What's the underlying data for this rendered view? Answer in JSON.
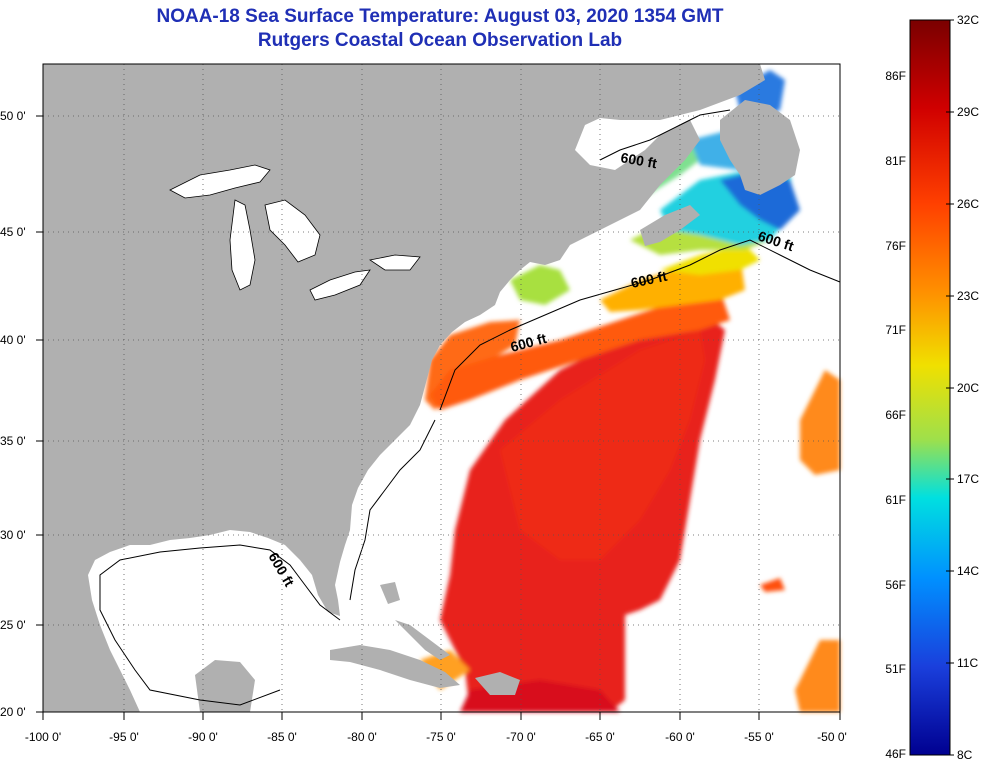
{
  "title": "NOAA-18 Sea Surface Temperature:  August 03, 2020 1354 GMT",
  "subtitle": "Rutgers Coastal Ocean Observation Lab",
  "lat_ticks": [
    "50 0'",
    "45 0'",
    "40 0'",
    "35 0'",
    "30 0'",
    "25 0'",
    "20 0'"
  ],
  "lon_ticks": [
    "-100 0'",
    "-95 0'",
    "-90 0'",
    "-85 0'",
    "-80 0'",
    "-75 0'",
    "-70 0'",
    "-65 0'",
    "-60 0'",
    "-55 0'",
    "-50 0'"
  ],
  "contour_labels": [
    "600 ft",
    "600 ft",
    "600 ft",
    "600 ft",
    "600 ft"
  ],
  "colorbar": {
    "celsius": [
      "32C",
      "29C",
      "26C",
      "23C",
      "20C",
      "17C",
      "14C",
      "11C",
      "8C"
    ],
    "fahrenheit": [
      "86F",
      "81F",
      "76F",
      "71F",
      "66F",
      "61F",
      "56F",
      "51F",
      "46F"
    ],
    "colors": [
      "#7a0000",
      "#d00000",
      "#ff4000",
      "#ff9000",
      "#f0e000",
      "#9fe04a",
      "#00e0e0",
      "#0090ff",
      "#1a3fdc",
      "#000090"
    ]
  },
  "colors": {
    "title": "#1f2fb5",
    "land": "#b0b0b0",
    "no_data": "#ffffff"
  }
}
